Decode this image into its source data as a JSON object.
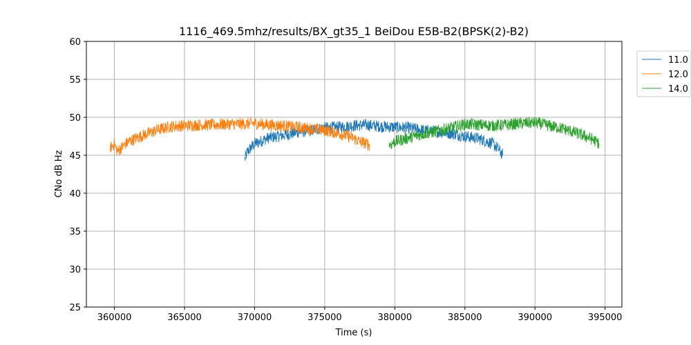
{
  "chart_data": {
    "type": "line",
    "title": "1116_469.5mhz/results/BX_gt35_1 BeiDou E5B-B2(BPSK(2)-B2)",
    "xlabel": "Time (s)",
    "ylabel": "CNo dB Hz",
    "xlim": [
      358000,
      396200
    ],
    "ylim": [
      25,
      60
    ],
    "xticks": [
      360000,
      365000,
      370000,
      375000,
      380000,
      385000,
      390000,
      395000
    ],
    "yticks": [
      25,
      30,
      35,
      40,
      45,
      50,
      55,
      60
    ],
    "grid": true,
    "legend_position": "outside-top-right",
    "series": [
      {
        "name": "11.0",
        "color": "#1f77b4",
        "noise": 0.8,
        "x": [
          369300,
          369500,
          370000,
          371000,
          372000,
          373000,
          374000,
          375000,
          376000,
          377000,
          378000,
          379000,
          380000,
          381000,
          382000,
          383000,
          384000,
          385000,
          386000,
          387000,
          387400,
          387700
        ],
        "y": [
          44.5,
          45.5,
          46.5,
          47.3,
          47.6,
          48.0,
          48.3,
          48.6,
          48.7,
          48.9,
          49.0,
          48.8,
          48.7,
          48.6,
          48.3,
          48.1,
          47.9,
          47.5,
          47.2,
          46.5,
          45.8,
          45.0
        ]
      },
      {
        "name": "12.0",
        "color": "#ff7f0e",
        "noise": 0.8,
        "x": [
          359700,
          360000,
          360200,
          361000,
          362000,
          363000,
          364000,
          365000,
          366000,
          367000,
          368000,
          369000,
          370000,
          371000,
          372000,
          373000,
          374000,
          375000,
          376000,
          377000,
          377500,
          378200
        ],
        "y": [
          46.0,
          46.5,
          45.5,
          46.8,
          47.6,
          48.3,
          48.8,
          48.9,
          49.0,
          49.0,
          49.1,
          49.1,
          49.2,
          49.0,
          48.9,
          48.7,
          48.5,
          48.3,
          47.9,
          47.3,
          46.8,
          46.4
        ]
      },
      {
        "name": "14.0",
        "color": "#2ca02c",
        "noise": 0.8,
        "x": [
          379600,
          380000,
          381000,
          382000,
          383000,
          384000,
          385000,
          386000,
          387000,
          388000,
          389000,
          390000,
          391000,
          392000,
          393000,
          394000,
          394600
        ],
        "y": [
          46.3,
          46.8,
          47.3,
          47.8,
          48.2,
          48.6,
          49.1,
          49.0,
          48.9,
          49.0,
          49.2,
          49.3,
          48.9,
          48.5,
          47.9,
          47.2,
          46.5
        ]
      }
    ]
  }
}
